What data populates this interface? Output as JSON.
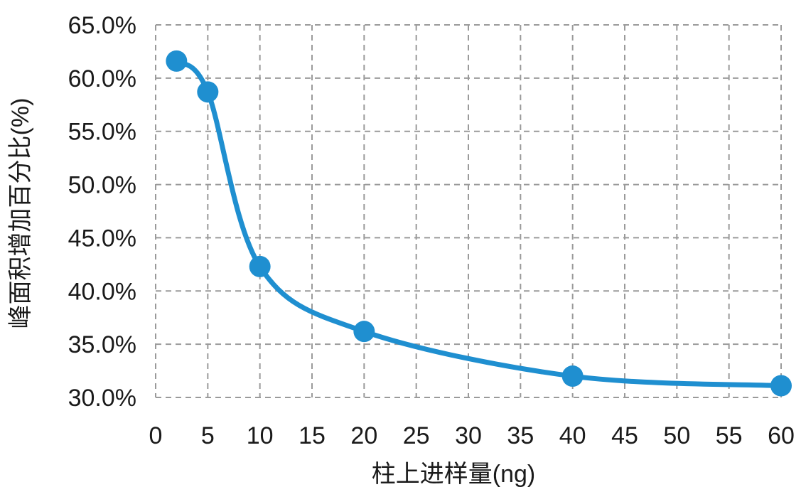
{
  "chart_data": {
    "type": "line",
    "title": "",
    "xlabel": "柱上进样量(ng)",
    "ylabel": "峰面积增加百分比(%)",
    "xlim": [
      0,
      60
    ],
    "ylim": [
      0.3,
      0.65
    ],
    "xticks": [
      "0",
      "5",
      "10",
      "15",
      "20",
      "25",
      "30",
      "35",
      "40",
      "45",
      "50",
      "55",
      "60"
    ],
    "yticks": [
      "30.0%",
      "35.0%",
      "40.0%",
      "45.0%",
      "50.0%",
      "55.0%",
      "60.0%",
      "65.0%"
    ],
    "grid": true,
    "grid_style": "dashed",
    "smooth": true,
    "legend": "none",
    "series": [
      {
        "color": "#1f8fd0",
        "x": [
          2,
          5,
          10,
          20,
          40,
          60
        ],
        "y": [
          0.616,
          0.587,
          0.423,
          0.362,
          0.32,
          0.311
        ]
      }
    ]
  }
}
